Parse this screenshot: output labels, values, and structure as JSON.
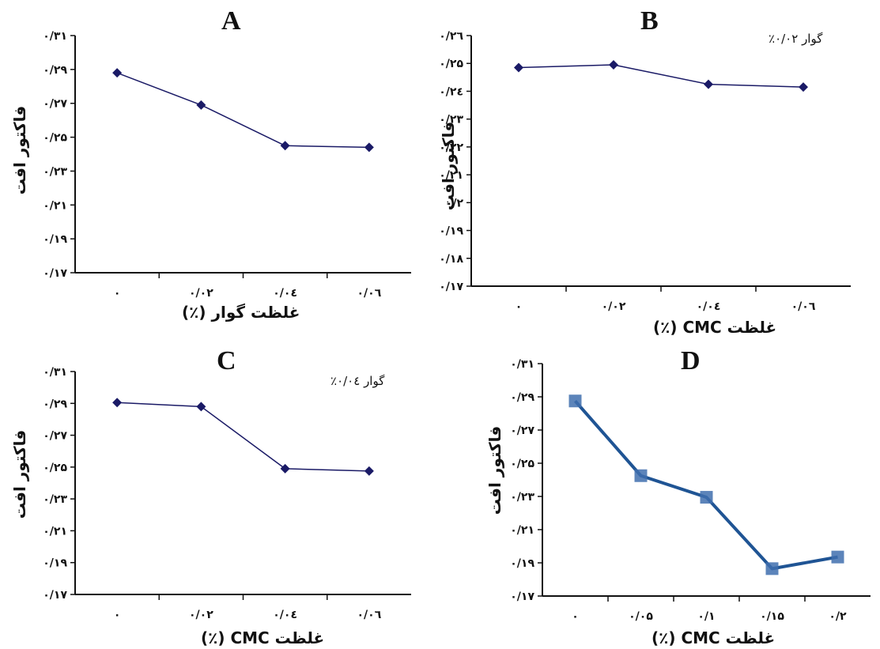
{
  "chart_data": [
    {
      "id": "A",
      "type": "line",
      "title": "A",
      "xlabel": "غلظت گوار (٪)",
      "ylabel": "فاکتور افت",
      "annotation": "",
      "categories": [
        "۰",
        "۰/۰۲",
        "۰/۰٤",
        "۰/۰٦"
      ],
      "yticks": [
        "۰/۳۱",
        "۰/۲۹",
        "۰/۲۷",
        "۰/۲۵",
        "۰/۲۳",
        "۰/۲۱",
        "۰/۱۹",
        "۰/۱۷"
      ],
      "ylim": [
        0.17,
        0.31
      ],
      "series": [
        {
          "values": [
            0.288,
            0.269,
            0.245,
            0.244
          ]
        }
      ],
      "color": "#1a1a66",
      "marker": "diamond"
    },
    {
      "id": "B",
      "type": "line",
      "title": "B",
      "xlabel": "غلظت CMC (٪)",
      "ylabel": "فاکتور افت",
      "annotation": "گوار ۰/۰۲٪",
      "categories": [
        "۰",
        "۰/۰۲",
        "۰/۰٤",
        "۰/۰٦"
      ],
      "yticks": [
        "۰/۲٦",
        "۰/۲۵",
        "۰/۲٤",
        "۰/۲۳",
        "۰/۲۲",
        "۰/۲۱",
        "۰/۲",
        "۰/۱۹",
        "۰/۱۸",
        "۰/۱۷"
      ],
      "ylim": [
        0.17,
        0.26
      ],
      "series": [
        {
          "values": [
            0.2485,
            0.2495,
            0.2425,
            0.2415
          ]
        }
      ],
      "color": "#1a1a66",
      "marker": "diamond"
    },
    {
      "id": "C",
      "type": "line",
      "title": "C",
      "xlabel": "غلظت CMC (٪)",
      "ylabel": "فاکتور افت",
      "annotation": "گوار ۰/۰٤٪",
      "categories": [
        "۰",
        "۰/۰۲",
        "۰/۰٤",
        "۰/۰٦"
      ],
      "yticks": [
        "۰/۳۱",
        "۰/۲۹",
        "۰/۲۷",
        "۰/۲۵",
        "۰/۲۳",
        "۰/۲۱",
        "۰/۱۹",
        "۰/۱۷"
      ],
      "ylim": [
        0.17,
        0.31
      ],
      "series": [
        {
          "values": [
            0.2905,
            0.288,
            0.249,
            0.2475
          ]
        }
      ],
      "color": "#1a1a66",
      "marker": "diamond"
    },
    {
      "id": "D",
      "type": "line",
      "title": "D",
      "xlabel": "غلظت CMC (٪)",
      "ylabel": "فاکتور افت",
      "annotation": "",
      "categories": [
        "۰",
        "۰/۰۵",
        "۰/۱",
        "۰/۱۵",
        "۰/۲"
      ],
      "yticks": [
        "۰/۳۱",
        "۰/۲۹",
        "۰/۲۷",
        "۰/۲۵",
        "۰/۲۳",
        "۰/۲۱",
        "۰/۱۹",
        "۰/۱۷"
      ],
      "ylim": [
        0.17,
        0.31
      ],
      "series": [
        {
          "values": [
            0.2875,
            0.2425,
            0.2295,
            0.1865,
            0.1935
          ]
        }
      ],
      "color": "#1f5494",
      "marker": "square"
    }
  ]
}
